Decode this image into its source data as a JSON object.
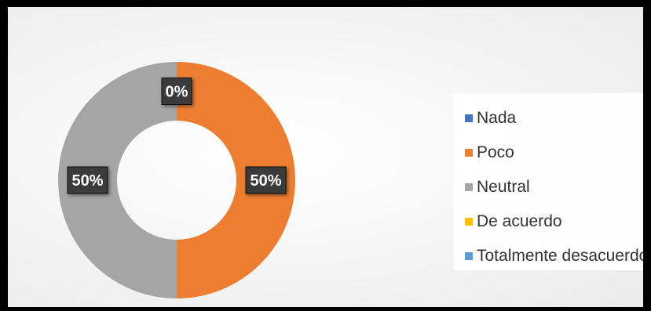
{
  "chart_data": {
    "type": "pie",
    "variant": "doughnut",
    "categories": [
      "Nada",
      "Poco",
      "Neutral",
      "De acuerdo",
      "Totalmente desacuerdo"
    ],
    "values": [
      0,
      50,
      50,
      0,
      0
    ],
    "data_labels": [
      "0%",
      "50%",
      "50%",
      "",
      ""
    ],
    "colors": [
      "#4472c4",
      "#ed7d31",
      "#a5a5a5",
      "#ffc000",
      "#5b9bd5"
    ],
    "legend_position": "right"
  }
}
